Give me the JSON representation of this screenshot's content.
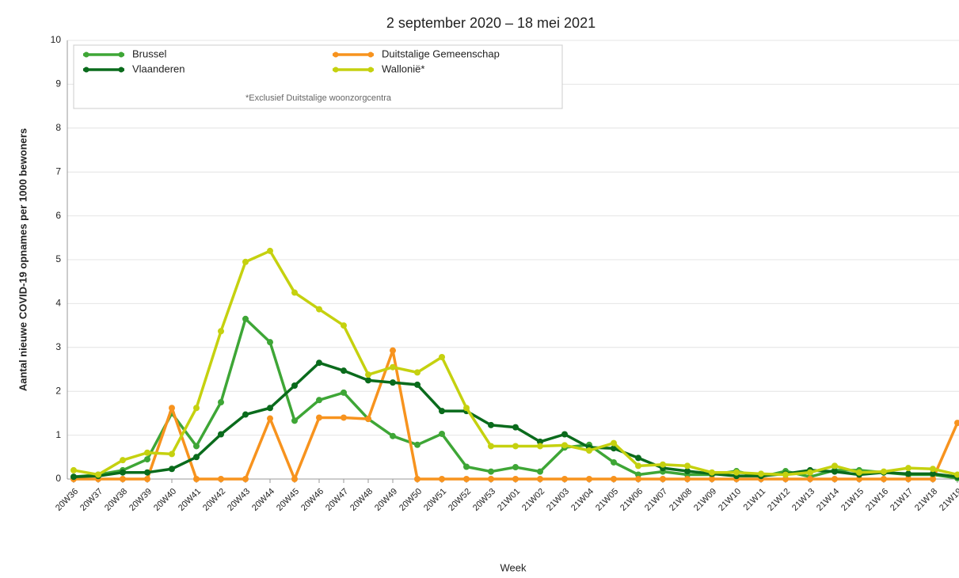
{
  "chart_data": {
    "type": "line",
    "title": "2 september 2020 – 18 mei 2021",
    "y_label": "Aantal nieuwe COVID-19 opnames per 1000 bewoners",
    "x_label": "Week",
    "legend_note": "*Exclusief Duitstalige woonzorgcentra",
    "legend": "top-left",
    "grid": true,
    "categories": [
      "20W36",
      "20W37",
      "20W38",
      "20W39",
      "20W40",
      "20W41",
      "20W42",
      "20W43",
      "20W44",
      "20W45",
      "20W46",
      "20W47",
      "20W48",
      "20W49",
      "20W50",
      "20W51",
      "20W52",
      "20W53",
      "21W01",
      "21W02",
      "21W03",
      "21W04",
      "21W05",
      "21W06",
      "21W07",
      "21W08",
      "21W09",
      "21W10",
      "21W11",
      "21W12",
      "21W13",
      "21W14",
      "21W15",
      "21W16",
      "21W17",
      "21W18",
      "21W19"
    ],
    "ylim": [
      0,
      10
    ],
    "yticks": [
      0,
      1,
      2,
      3,
      4,
      5,
      6,
      7,
      8,
      9,
      10
    ],
    "series": [
      {
        "name": "Brussel",
        "color": "#3ea636",
        "values": [
          0.05,
          0.1,
          0.2,
          0.45,
          1.5,
          0.75,
          1.75,
          3.65,
          3.12,
          1.33,
          1.8,
          1.97,
          1.37,
          0.98,
          0.78,
          1.03,
          0.28,
          0.17,
          0.27,
          0.17,
          0.72,
          0.78,
          0.38,
          0.1,
          0.17,
          0.1,
          0.1,
          0.18,
          0.05,
          0.18,
          0.05,
          0.2,
          0.2,
          0.15,
          0.1,
          0.1,
          0.02
        ]
      },
      {
        "name": "Duitstalige Gemeenschap",
        "color": "#f7931e",
        "values": [
          0,
          0,
          0,
          0,
          1.62,
          0,
          0,
          0,
          1.38,
          0,
          1.4,
          1.4,
          1.37,
          2.93,
          0,
          0,
          0,
          0,
          0,
          0,
          0,
          0,
          0,
          0,
          0,
          0,
          0,
          0,
          0,
          0,
          0,
          0,
          0,
          0,
          0,
          0,
          1.28
        ]
      },
      {
        "name": "Vlaanderen",
        "color": "#0a6b1c",
        "values": [
          0.05,
          0.07,
          0.15,
          0.15,
          0.23,
          0.5,
          1.02,
          1.47,
          1.62,
          2.13,
          2.65,
          2.47,
          2.25,
          2.2,
          2.15,
          1.55,
          1.55,
          1.23,
          1.18,
          0.85,
          1.02,
          0.72,
          0.7,
          0.48,
          0.25,
          0.18,
          0.12,
          0.07,
          0.07,
          0.12,
          0.2,
          0.17,
          0.1,
          0.15,
          0.12,
          0.12,
          0.05
        ]
      },
      {
        "name": "Wallonië*",
        "color": "#c5d10f",
        "values": [
          0.2,
          0.1,
          0.43,
          0.6,
          0.57,
          1.62,
          3.37,
          4.95,
          5.2,
          4.25,
          3.87,
          3.5,
          2.38,
          2.55,
          2.43,
          2.78,
          1.62,
          0.75,
          0.75,
          0.75,
          0.77,
          0.65,
          0.82,
          0.3,
          0.33,
          0.3,
          0.15,
          0.15,
          0.12,
          0.1,
          0.15,
          0.3,
          0.15,
          0.17,
          0.25,
          0.23,
          0.1
        ]
      }
    ]
  }
}
